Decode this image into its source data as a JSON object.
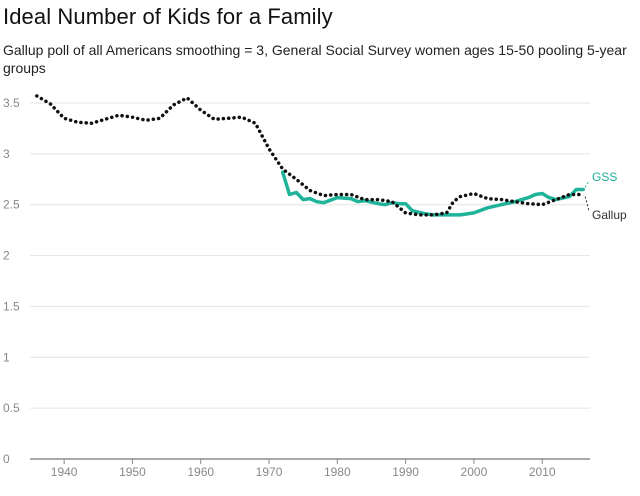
{
  "title": "Ideal Number of Kids for a Family",
  "subtitle": "Gallup poll of all Americans smoothing = 3, General Social Survey women ages 15-50 pooling 5-year groups",
  "colors": {
    "gallup": "#111111",
    "gss": "#1fb39a",
    "grid": "#e4e4e4",
    "axis": "#888888"
  },
  "chart_data": {
    "type": "line",
    "title": "Ideal Number of Kids for a Family",
    "xlabel": "",
    "ylabel": "",
    "xlim": [
      1935,
      2017
    ],
    "ylim": [
      0,
      3.5
    ],
    "x_ticks": [
      1940,
      1950,
      1960,
      1970,
      1980,
      1990,
      2000,
      2010
    ],
    "y_ticks": [
      0,
      0.5,
      1,
      1.5,
      2,
      2.5,
      3,
      3.5
    ],
    "grid": true,
    "legend": "direct labels at right end of lines",
    "series": [
      {
        "name": "Gallup",
        "style": "dotted",
        "color": "#111111",
        "x": [
          1936,
          1938,
          1940,
          1942,
          1944,
          1946,
          1948,
          1950,
          1952,
          1954,
          1956,
          1958,
          1960,
          1962,
          1964,
          1966,
          1968,
          1970,
          1972,
          1974,
          1976,
          1978,
          1980,
          1982,
          1984,
          1986,
          1988,
          1990,
          1992,
          1994,
          1996,
          1997,
          1998,
          2000,
          2002,
          2004,
          2006,
          2008,
          2010,
          2012,
          2014,
          2016
        ],
        "y": [
          3.57,
          3.49,
          3.35,
          3.31,
          3.3,
          3.34,
          3.38,
          3.36,
          3.33,
          3.35,
          3.48,
          3.55,
          3.43,
          3.34,
          3.35,
          3.36,
          3.3,
          3.05,
          2.85,
          2.75,
          2.64,
          2.59,
          2.6,
          2.6,
          2.55,
          2.55,
          2.53,
          2.42,
          2.4,
          2.4,
          2.42,
          2.53,
          2.58,
          2.61,
          2.56,
          2.55,
          2.53,
          2.51,
          2.5,
          2.55,
          2.6,
          2.6
        ]
      },
      {
        "name": "GSS",
        "style": "solid",
        "color": "#1fb39a",
        "x": [
          1972,
          1973,
          1974,
          1975,
          1976,
          1977,
          1978,
          1980,
          1982,
          1983,
          1984,
          1986,
          1987,
          1988,
          1989,
          1990,
          1991,
          1993,
          1994,
          1996,
          1998,
          2000,
          2002,
          2004,
          2006,
          2008,
          2009,
          2010,
          2011,
          2012,
          2014,
          2015,
          2016
        ],
        "y": [
          2.82,
          2.6,
          2.62,
          2.55,
          2.56,
          2.53,
          2.52,
          2.57,
          2.56,
          2.53,
          2.54,
          2.51,
          2.5,
          2.52,
          2.51,
          2.51,
          2.44,
          2.41,
          2.4,
          2.4,
          2.4,
          2.42,
          2.47,
          2.5,
          2.53,
          2.57,
          2.6,
          2.61,
          2.57,
          2.55,
          2.58,
          2.65,
          2.65
        ]
      }
    ]
  }
}
